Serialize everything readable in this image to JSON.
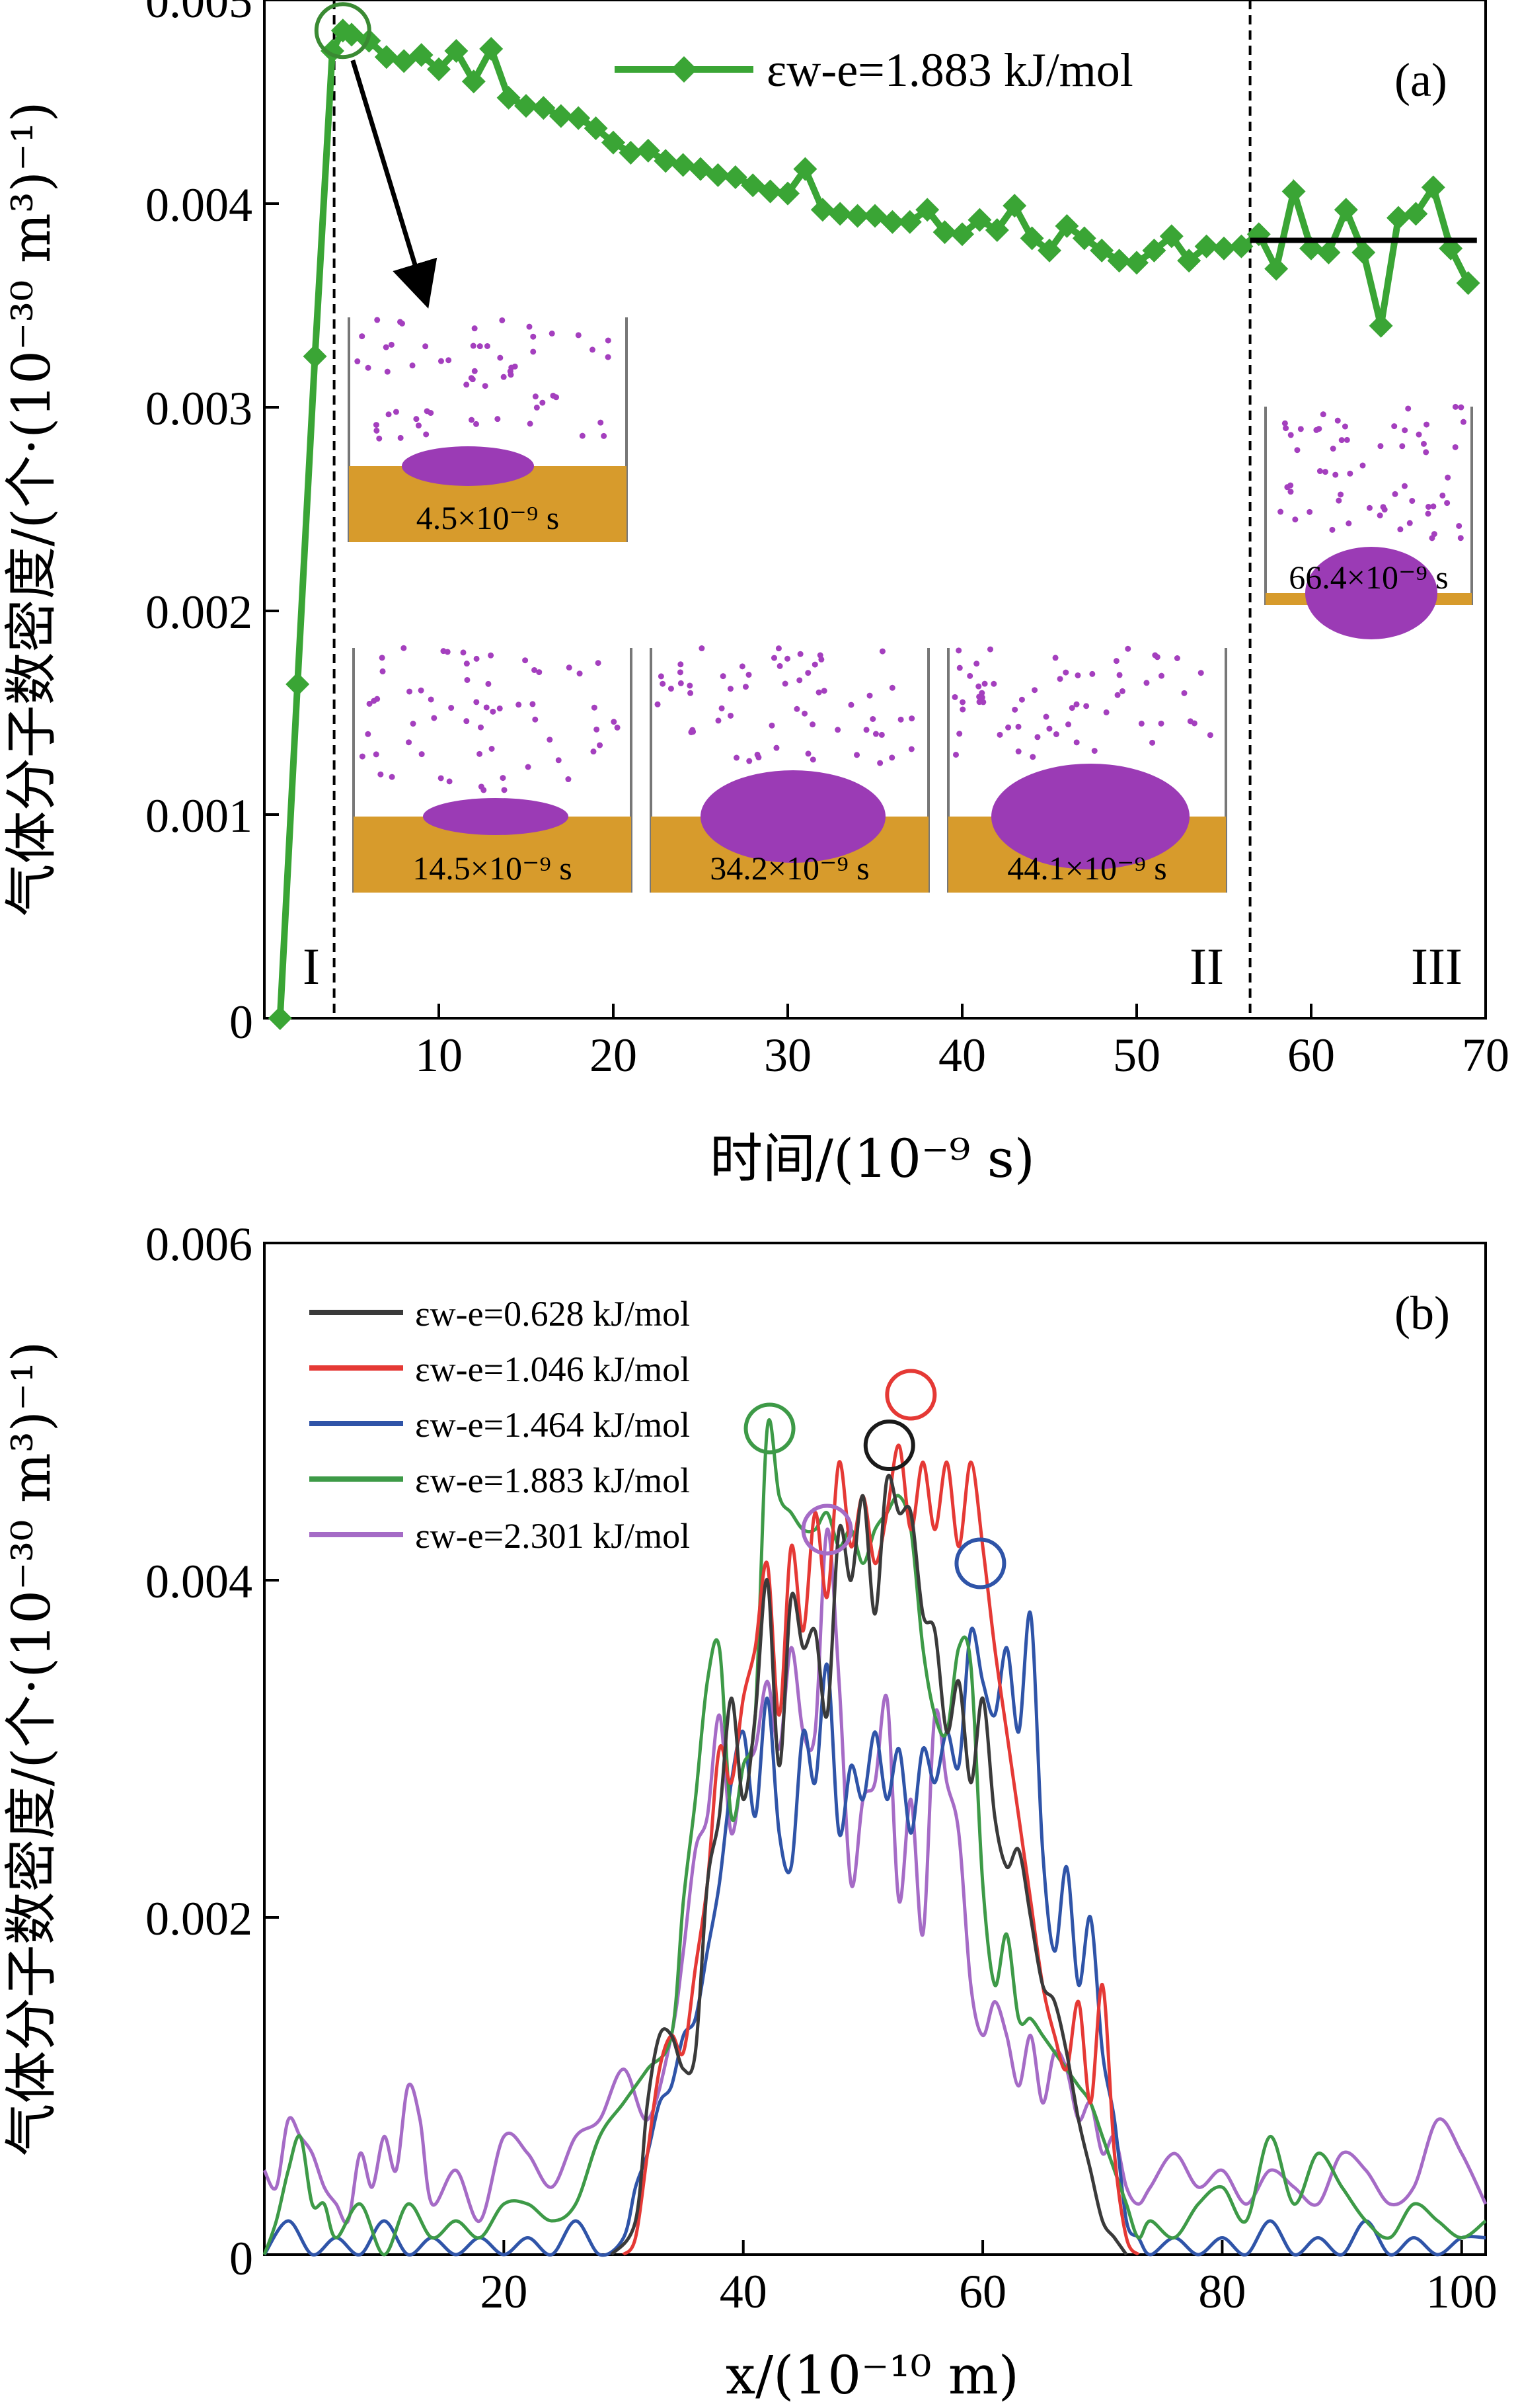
{
  "chart_data": [
    {
      "type": "line",
      "panel_label": "(a)",
      "xlabel": "时间/(10⁻⁹ s)",
      "ylabel": "气体分子数密度/(个·(10⁻³⁰ m³)⁻¹)",
      "xlim": [
        0,
        70
      ],
      "ylim": [
        0,
        0.005
      ],
      "x_ticks": [
        "10",
        "20",
        "30",
        "40",
        "50",
        "60",
        "70"
      ],
      "x_tick_values": [
        10,
        20,
        30,
        40,
        50,
        60,
        70
      ],
      "y_ticks": [
        "0",
        "0.001",
        "0.002",
        "0.003",
        "0.004",
        "0.005"
      ],
      "y_tick_values": [
        0,
        0.001,
        0.002,
        0.003,
        0.004,
        0.005
      ],
      "legend": "εw-e=1.883 kJ/mol",
      "series": [
        {
          "name": "εw-e=1.883 kJ/mol",
          "color": "#3aa535",
          "x": [
            0.9,
            1.9,
            2.9,
            3.9,
            4.5,
            5.0,
            6.0,
            7.0,
            8.0,
            9.0,
            10.0,
            11.0,
            12.0,
            13.0,
            14.0,
            15.0,
            16.0,
            17.0,
            18.0,
            19.0,
            20.0,
            21.0,
            22.0,
            23.0,
            24.0,
            25.0,
            26.0,
            27.0,
            28.0,
            29.0,
            30.0,
            31.0,
            32.0,
            33.0,
            34.0,
            35.0,
            36.0,
            37.0,
            38.0,
            39.0,
            40.0,
            41.0,
            42.0,
            43.0,
            44.0,
            45.0,
            46.0,
            47.0,
            48.0,
            49.0,
            50.0,
            51.0,
            52.0,
            53.0,
            54.0,
            55.0,
            56.0,
            57.0,
            58.0,
            59.0,
            60.0,
            61.0,
            62.0,
            63.0,
            64.0,
            65.0,
            66.0,
            67.0,
            68.0,
            69.0
          ],
          "y": [
            0.0,
            0.00164,
            0.00325,
            0.00475,
            0.00485,
            0.00483,
            0.0048,
            0.00472,
            0.0047,
            0.00473,
            0.00466,
            0.00475,
            0.0046,
            0.00476,
            0.00452,
            0.00448,
            0.00447,
            0.00443,
            0.00442,
            0.00437,
            0.0043,
            0.00425,
            0.00426,
            0.00421,
            0.00419,
            0.00417,
            0.00414,
            0.00413,
            0.00409,
            0.00406,
            0.00405,
            0.00417,
            0.00397,
            0.00395,
            0.00394,
            0.00394,
            0.00391,
            0.00391,
            0.00397,
            0.00386,
            0.00385,
            0.00392,
            0.00387,
            0.00399,
            0.00383,
            0.00377,
            0.00389,
            0.00383,
            0.00377,
            0.00372,
            0.00371,
            0.00377,
            0.00384,
            0.00372,
            0.00379,
            0.00378,
            0.00379,
            0.00385,
            0.00368,
            0.00406,
            0.00378,
            0.00376,
            0.00397,
            0.00376,
            0.0034,
            0.00393,
            0.00395,
            0.00408,
            0.00378,
            0.00361
          ]
        }
      ],
      "reference_line": {
        "x_start": 56.5,
        "x_end": 69.5,
        "y": 0.00382
      },
      "vlines": [
        4.0,
        56.5
      ],
      "regions": [
        "I",
        "II",
        "III"
      ],
      "highlight_point": {
        "x": 4.5,
        "y": 0.00485
      },
      "snapshots": [
        "4.5×10⁻⁹ s",
        "14.5×10⁻⁹ s",
        "34.2×10⁻⁹ s",
        "44.1×10⁻⁹ s",
        "66.4×10⁻⁹ s"
      ]
    },
    {
      "type": "line",
      "panel_label": "(b)",
      "xlabel": "x/(10⁻¹⁰ m)",
      "ylabel": "气体分子数密度/(个·(10⁻³⁰ m³)⁻¹)",
      "xlim": [
        0,
        102
      ],
      "ylim": [
        0,
        0.006
      ],
      "x_ticks": [
        "20",
        "40",
        "60",
        "80",
        "100"
      ],
      "x_tick_values": [
        20,
        40,
        60,
        80,
        100
      ],
      "y_ticks": [
        "0",
        "0.002",
        "0.004",
        "0.006"
      ],
      "y_tick_values": [
        0,
        0.002,
        0.004,
        0.006
      ],
      "series": [
        {
          "name": "εw-e=0.628 kJ/mol",
          "color": "#3a3a3a",
          "x": [
            29,
            31,
            32,
            33,
            34,
            35,
            36,
            37,
            38,
            39,
            40,
            41,
            42,
            43,
            44,
            45,
            46,
            47,
            48,
            49,
            50,
            51,
            52,
            53,
            54,
            55,
            56,
            57,
            58,
            59,
            60,
            61,
            62,
            63,
            64,
            65,
            66,
            67,
            68,
            69,
            70,
            71,
            72
          ],
          "y": [
            0.0,
            0.0002,
            0.0009,
            0.0013,
            0.0013,
            0.0011,
            0.0012,
            0.0022,
            0.0026,
            0.0033,
            0.0027,
            0.0032,
            0.004,
            0.0029,
            0.0039,
            0.0036,
            0.0037,
            0.0032,
            0.0043,
            0.004,
            0.0045,
            0.0038,
            0.0046,
            0.0044,
            0.0044,
            0.0038,
            0.0037,
            0.0031,
            0.0034,
            0.0028,
            0.0033,
            0.0026,
            0.0023,
            0.0024,
            0.002,
            0.0016,
            0.0015,
            0.0012,
            0.0008,
            0.0005,
            0.0002,
            0.0001,
            0.0
          ]
        },
        {
          "name": "εw-e=1.046 kJ/mol",
          "color": "#e53935",
          "x": [
            30,
            31,
            32,
            33,
            34,
            35,
            36,
            37,
            38,
            39,
            40,
            41,
            42,
            43,
            44,
            45,
            46,
            47,
            48,
            49,
            50,
            51,
            52,
            53,
            54,
            55,
            56,
            57,
            58,
            59,
            60,
            61,
            62,
            63,
            64,
            65,
            66,
            67,
            68,
            69,
            70,
            71,
            72,
            73
          ],
          "y": [
            0.0,
            0.0001,
            0.0006,
            0.0011,
            0.0013,
            0.0012,
            0.0017,
            0.0022,
            0.003,
            0.0028,
            0.0033,
            0.0036,
            0.0041,
            0.0032,
            0.0042,
            0.0037,
            0.0044,
            0.0039,
            0.0047,
            0.0042,
            0.0045,
            0.0041,
            0.0044,
            0.0048,
            0.0043,
            0.0047,
            0.0043,
            0.0047,
            0.0042,
            0.0047,
            0.0042,
            0.0036,
            0.0031,
            0.0026,
            0.0021,
            0.0016,
            0.0013,
            0.0011,
            0.0015,
            0.0009,
            0.0016,
            0.0006,
            0.0001,
            0.0
          ]
        },
        {
          "name": "εw-e=1.464 kJ/mol",
          "color": "#2f54a8",
          "x": [
            0,
            2,
            4,
            6,
            8,
            10,
            12,
            14,
            16,
            18,
            20,
            22,
            24,
            26,
            28,
            30,
            31,
            32,
            33,
            34,
            35,
            36,
            37,
            38,
            39,
            40,
            41,
            42,
            43,
            44,
            45,
            46,
            47,
            48,
            49,
            50,
            51,
            52,
            53,
            54,
            55,
            56,
            57,
            58,
            59,
            60,
            61,
            62,
            63,
            64,
            65,
            66,
            67,
            68,
            69,
            70,
            71,
            72,
            73,
            74,
            76,
            78,
            80,
            82,
            84,
            86,
            88,
            90,
            92,
            94,
            96,
            98,
            100,
            102
          ],
          "y": [
            0.0,
            0.0002,
            0.0,
            0.0001,
            0.0,
            0.0002,
            0.0,
            0.0001,
            0.0,
            0.0001,
            0.0,
            0.0001,
            0.0,
            0.0002,
            0.0,
            0.0001,
            0.0004,
            0.0006,
            0.0009,
            0.001,
            0.0013,
            0.0014,
            0.0018,
            0.0022,
            0.0028,
            0.0031,
            0.0026,
            0.0033,
            0.0025,
            0.0023,
            0.0031,
            0.0028,
            0.0035,
            0.0025,
            0.0029,
            0.0027,
            0.0031,
            0.0027,
            0.003,
            0.0025,
            0.003,
            0.0028,
            0.0031,
            0.0029,
            0.0037,
            0.0034,
            0.0032,
            0.0036,
            0.0031,
            0.0038,
            0.0024,
            0.0018,
            0.0023,
            0.0016,
            0.002,
            0.0012,
            0.0008,
            0.0002,
            0.0001,
            0.0,
            0.0001,
            0.0,
            0.0001,
            0.0,
            0.0002,
            0.0,
            0.0001,
            0.0,
            0.0002,
            0.0,
            0.0001,
            0.0,
            0.0001,
            0.0001
          ]
        },
        {
          "name": "εw-e=1.883 kJ/mol",
          "color": "#3d9a47",
          "x": [
            0,
            1,
            2,
            3,
            4,
            5,
            6,
            8,
            10,
            12,
            14,
            16,
            18,
            20,
            22,
            24,
            26,
            28,
            30,
            32,
            34,
            35,
            36,
            37,
            38,
            39,
            40,
            41,
            42,
            43,
            44,
            45,
            46,
            47,
            48,
            49,
            50,
            51,
            52,
            53,
            54,
            55,
            56,
            57,
            58,
            59,
            60,
            61,
            62,
            63,
            64,
            65,
            66,
            67,
            68,
            69,
            70,
            71,
            72,
            73,
            74,
            76,
            78,
            80,
            82,
            84,
            86,
            88,
            90,
            92,
            94,
            96,
            98,
            100,
            102
          ],
          "y": [
            0.0,
            0.0002,
            0.0005,
            0.0007,
            0.0003,
            0.0003,
            0.0001,
            0.0003,
            0.0,
            0.0003,
            0.0001,
            0.0002,
            0.0001,
            0.0003,
            0.0003,
            0.0002,
            0.0003,
            0.0007,
            0.0009,
            0.0011,
            0.0013,
            0.0021,
            0.0027,
            0.0034,
            0.0036,
            0.0026,
            0.0029,
            0.0032,
            0.0049,
            0.0045,
            0.0044,
            0.0043,
            0.0043,
            0.0044,
            0.0042,
            0.0043,
            0.0041,
            0.0043,
            0.0044,
            0.0045,
            0.0043,
            0.0036,
            0.0032,
            0.0031,
            0.0036,
            0.0035,
            0.0022,
            0.0016,
            0.0019,
            0.0014,
            0.0014,
            0.0013,
            0.0012,
            0.0011,
            0.001,
            0.0009,
            0.0007,
            0.0005,
            0.0003,
            0.0001,
            0.0002,
            0.0001,
            0.0003,
            0.0004,
            0.0002,
            0.0007,
            0.0003,
            0.0006,
            0.0004,
            0.0002,
            0.0001,
            0.0003,
            0.0002,
            0.0001,
            0.0002
          ]
        },
        {
          "name": "εw-e=2.301 kJ/mol",
          "color": "#a56bc6",
          "x": [
            0,
            1,
            2,
            3,
            4,
            5,
            6,
            7,
            8,
            9,
            10,
            11,
            12,
            13,
            14,
            16,
            18,
            20,
            22,
            24,
            26,
            28,
            30,
            32,
            34,
            35,
            36,
            37,
            38,
            39,
            40,
            41,
            42,
            43,
            44,
            45,
            46,
            47,
            48,
            49,
            50,
            51,
            52,
            53,
            54,
            55,
            56,
            57,
            58,
            59,
            60,
            61,
            62,
            63,
            64,
            65,
            66,
            67,
            68,
            69,
            70,
            71,
            72,
            73,
            74,
            76,
            78,
            80,
            82,
            84,
            86,
            88,
            90,
            92,
            94,
            96,
            98,
            100,
            102
          ],
          "y": [
            0.0005,
            0.0004,
            0.0008,
            0.0007,
            0.0006,
            0.0004,
            0.0003,
            0.0002,
            0.0006,
            0.0004,
            0.0007,
            0.0005,
            0.001,
            0.0008,
            0.0003,
            0.0005,
            0.0002,
            0.0007,
            0.0006,
            0.0004,
            0.0007,
            0.0008,
            0.0011,
            0.0008,
            0.0013,
            0.0018,
            0.0024,
            0.0026,
            0.0032,
            0.0025,
            0.0029,
            0.003,
            0.0034,
            0.003,
            0.0036,
            0.0031,
            0.0031,
            0.0043,
            0.0034,
            0.0022,
            0.0027,
            0.0028,
            0.0033,
            0.0021,
            0.0027,
            0.0019,
            0.0032,
            0.0028,
            0.0025,
            0.0016,
            0.0013,
            0.0015,
            0.0013,
            0.001,
            0.0013,
            0.0009,
            0.0012,
            0.0011,
            0.0008,
            0.0009,
            0.0006,
            0.0007,
            0.0004,
            0.0003,
            0.0004,
            0.0006,
            0.0004,
            0.0005,
            0.0003,
            0.0005,
            0.0004,
            0.0003,
            0.0006,
            0.0005,
            0.0003,
            0.0004,
            0.0008,
            0.0006,
            0.0003
          ]
        }
      ],
      "peak_circles": [
        {
          "x": 42.2,
          "y": 0.0049,
          "color": "#3d9a47"
        },
        {
          "x": 47,
          "y": 0.0043,
          "color": "#a56bc6"
        },
        {
          "x": 52.2,
          "y": 0.0048,
          "color": "#1a1a1a"
        },
        {
          "x": 54,
          "y": 0.0051,
          "color": "#e53935"
        },
        {
          "x": 59.8,
          "y": 0.0041,
          "color": "#2f54a8"
        }
      ]
    }
  ]
}
